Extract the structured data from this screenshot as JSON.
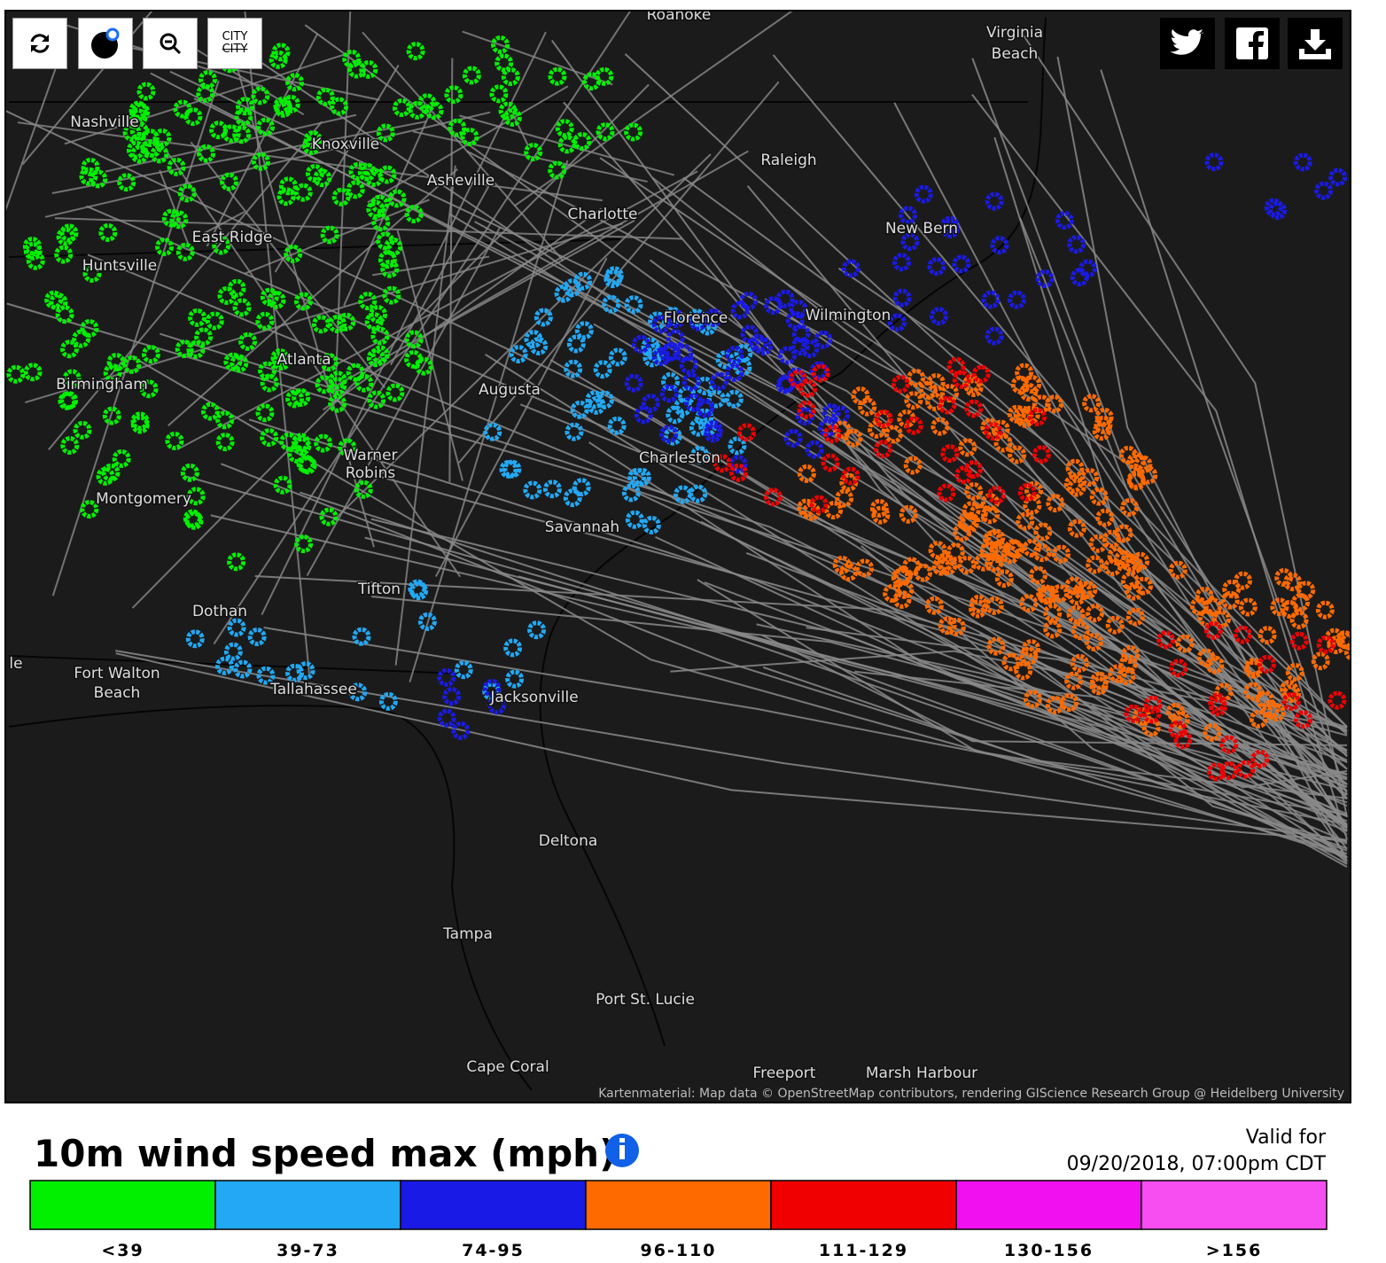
{
  "map": {
    "cities": [
      "Roanoke",
      "Virginia",
      "Beach",
      "Nashville",
      "Knoxville",
      "Asheville",
      "Raleigh",
      "Charlotte",
      "East Ridge",
      "New Bern",
      "Huntsville",
      "Florence",
      "Wilmington",
      "Atlanta",
      "Birmingham",
      "Augusta",
      "Charleston",
      "Warner",
      "Robins",
      "Montgomery",
      "Savannah",
      "Tifton",
      "Dothan",
      "Fort Walton",
      "Beach",
      "Tallahassee",
      "Jacksonville",
      "Deltona",
      "Tampa",
      "Port St. Lucie",
      "Cape Coral",
      "Freeport",
      "Marsh Harbour",
      "le"
    ],
    "attribution": "Kartenmaterial: Map data © OpenStreetMap contributors, rendering GIScience Research Group @ Heidelberg University"
  },
  "controls": {
    "city_labels": [
      "CITY",
      "CITY"
    ]
  },
  "legend": {
    "title": "10m wind speed max (mph)",
    "valid_label": "Valid for",
    "valid_time": "09/20/2018, 07:00pm CDT",
    "items": [
      {
        "label": "<39",
        "color": "#00f000"
      },
      {
        "label": "39-73",
        "color": "#22a8f4"
      },
      {
        "label": "74-95",
        "color": "#1a1ae6"
      },
      {
        "label": "96-110",
        "color": "#ff6a00"
      },
      {
        "label": "111-129",
        "color": "#f00000"
      },
      {
        "label": "130-156",
        "color": "#f010f0"
      },
      {
        "label": ">156",
        "color": "#f64ef0"
      }
    ]
  }
}
